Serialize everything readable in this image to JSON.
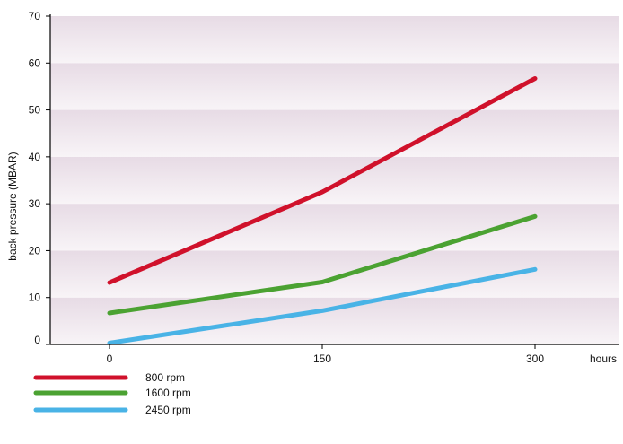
{
  "chart_data": {
    "type": "line",
    "title": "",
    "xlabel": "hours",
    "ylabel": "back pressure (MBAR)",
    "x": [
      0,
      150,
      300
    ],
    "x_ticks": [
      "0",
      "150",
      "300"
    ],
    "ylim": [
      0,
      70
    ],
    "y_ticks": [
      "0",
      "10",
      "20",
      "30",
      "40",
      "50",
      "60",
      "70"
    ],
    "grid": "alternating horizontal bands",
    "legend_position": "bottom-left",
    "series": [
      {
        "name": "800 rpm",
        "color": "#d0112b",
        "values": [
          13.2,
          32.5,
          56.7
        ]
      },
      {
        "name": "1600 rpm",
        "color": "#4ba232",
        "values": [
          6.7,
          13.3,
          27.3
        ]
      },
      {
        "name": "2450 rpm",
        "color": "#49b3e6",
        "values": [
          0.3,
          7.2,
          16.0
        ]
      }
    ],
    "colors": {
      "band_dark": "#e7dbe5",
      "band_light": "#f8f4f7",
      "axis": "#000000"
    }
  }
}
